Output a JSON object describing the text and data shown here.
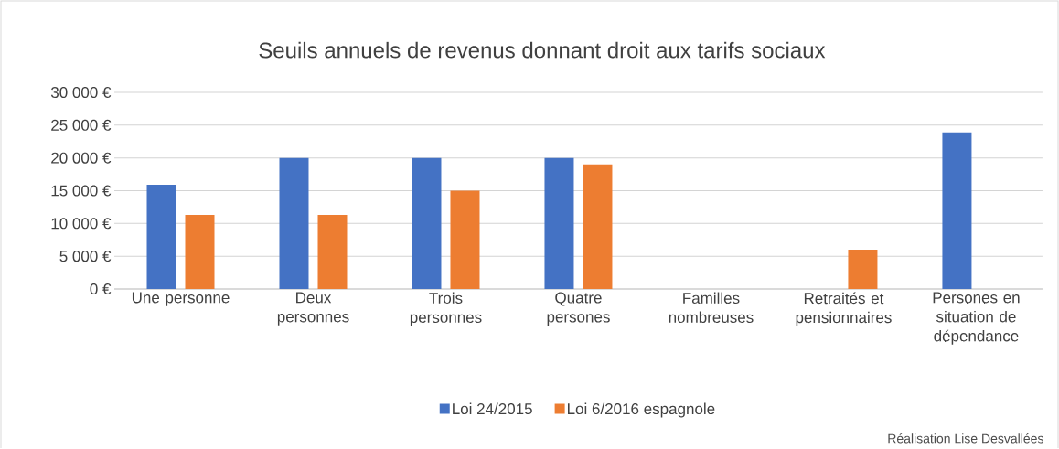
{
  "chart_data": {
    "type": "bar",
    "title": "Seuils annuels de revenus donnant droit aux tarifs sociaux",
    "categories": [
      "Une personne",
      "Deux personnes",
      "Trois personnes",
      "Quatre persones",
      "Familles nombreuses",
      "Retraités et pensionnaires",
      "Persones en situation de dépendance"
    ],
    "series": [
      {
        "name": "Loi 24/2015",
        "color": "#4472c4",
        "values": [
          15900,
          20000,
          20000,
          20000,
          null,
          null,
          23900
        ]
      },
      {
        "name": "Loi 6/2016 espagnole",
        "color": "#ed7d31",
        "values": [
          11300,
          11300,
          15000,
          19000,
          null,
          6000,
          null
        ]
      }
    ],
    "ylim": [
      0,
      30000
    ],
    "yticks": [
      {
        "value": 0,
        "label": "0 €"
      },
      {
        "value": 5000,
        "label": "5 000 €"
      },
      {
        "value": 10000,
        "label": "10 000 €"
      },
      {
        "value": 15000,
        "label": "15 000 €"
      },
      {
        "value": 20000,
        "label": "20 000 €"
      },
      {
        "value": 25000,
        "label": "25 000 €"
      },
      {
        "value": 30000,
        "label": "30 000 €"
      }
    ],
    "grid": "y",
    "legend": "bottom",
    "annotations": [
      "Réalisation Lise Desvallées"
    ]
  }
}
